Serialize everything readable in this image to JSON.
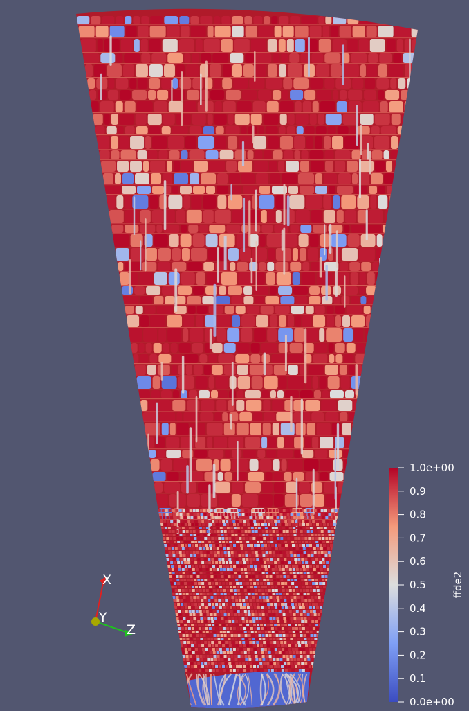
{
  "scalar_bar": {
    "title": "ffde2",
    "ticks": [
      {
        "value": 1.0,
        "label": "1.0e+00"
      },
      {
        "value": 0.9,
        "label": "0.9"
      },
      {
        "value": 0.8,
        "label": "0.8"
      },
      {
        "value": 0.7,
        "label": "0.7"
      },
      {
        "value": 0.6,
        "label": "0.6"
      },
      {
        "value": 0.5,
        "label": "0.5"
      },
      {
        "value": 0.4,
        "label": "0.4"
      },
      {
        "value": 0.3,
        "label": "0.3"
      },
      {
        "value": 0.2,
        "label": "0.2"
      },
      {
        "value": 0.1,
        "label": "0.1"
      },
      {
        "value": 0.0,
        "label": "0.0e+00"
      }
    ],
    "colormap": [
      "#3b4cc0",
      "#7f9ff5",
      "#dcdddd",
      "#f49a7b",
      "#b40426"
    ]
  },
  "orientation_axes": {
    "x_label": "X",
    "y_label": "Y",
    "z_label": "Z",
    "x_color": "#e02020",
    "y_color": "#c8c800",
    "z_color": "#20c020"
  },
  "render": {
    "background": "#525670",
    "dominant_color": "#b01a2a"
  }
}
